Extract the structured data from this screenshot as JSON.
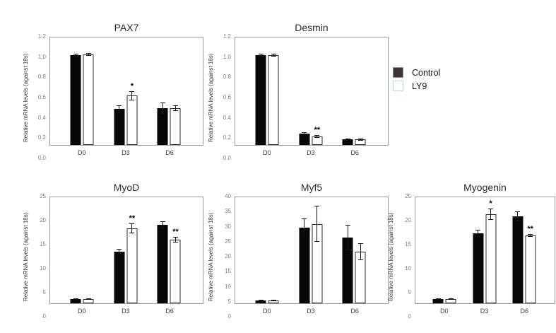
{
  "legend": {
    "items": [
      {
        "label": "Control",
        "swatch": "#3e3634",
        "border": "#8f8f8f"
      },
      {
        "label": "LY9",
        "swatch": "#ffffff",
        "border": "#c2d1e0"
      }
    ]
  },
  "chart_data": [
    {
      "type": "bar",
      "title": "PAX7",
      "ylabel": "Relative mRNA levels (against 18s)",
      "xlabel": "",
      "ylim": [
        0,
        1.2
      ],
      "ytick_step": 0.2,
      "ytick_decimals": 1,
      "grid": false,
      "legend_position": "outside-right",
      "categories": [
        "D0",
        "D3",
        "D6"
      ],
      "series": [
        {
          "name": "Control",
          "values": [
            1.0,
            0.4,
            0.41
          ],
          "errors": [
            0.02,
            0.04,
            0.06
          ]
        },
        {
          "name": "LY9",
          "values": [
            1.01,
            0.55,
            0.41
          ],
          "errors": [
            0.015,
            0.05,
            0.03
          ]
        }
      ],
      "significance": [
        {
          "category": "D3",
          "series": "LY9",
          "marker": "*"
        }
      ]
    },
    {
      "type": "bar",
      "title": "Desmin",
      "ylabel": "Relative mRNA levels (against 18s)",
      "xlabel": "",
      "ylim": [
        0,
        1.2
      ],
      "ytick_step": 0.2,
      "ytick_decimals": 1,
      "grid": false,
      "categories": [
        "D0",
        "D3",
        "D6"
      ],
      "series": [
        {
          "name": "Control",
          "values": [
            1.0,
            0.13,
            0.06
          ],
          "errors": [
            0.015,
            0.015,
            0.008
          ]
        },
        {
          "name": "LY9",
          "values": [
            1.0,
            0.095,
            0.06
          ],
          "errors": [
            0.015,
            0.012,
            0.012
          ]
        }
      ],
      "significance": [
        {
          "category": "D3",
          "series": "LY9",
          "marker": "**"
        }
      ]
    },
    {
      "type": "bar",
      "title": "MyoD",
      "ylabel": "Relative mRNA levels (against 18s)",
      "xlabel": "",
      "ylim": [
        0,
        25
      ],
      "ytick_step": 5,
      "ytick_decimals": 0,
      "grid": false,
      "categories": [
        "D0",
        "D3",
        "D6"
      ],
      "series": [
        {
          "name": "Control",
          "values": [
            1.0,
            12.2,
            18.5
          ],
          "errors": [
            0.15,
            0.6,
            0.8
          ]
        },
        {
          "name": "LY9",
          "values": [
            1.0,
            17.7,
            15.0
          ],
          "errors": [
            0.15,
            1.2,
            0.7
          ]
        }
      ],
      "significance": [
        {
          "category": "D3",
          "series": "LY9",
          "marker": "**"
        },
        {
          "category": "D6",
          "series": "LY9",
          "marker": "**"
        }
      ]
    },
    {
      "type": "bar",
      "title": "Myf5",
      "ylabel": "Relative mRNA levels (against 18s)",
      "xlabel": "",
      "ylim": [
        0,
        40
      ],
      "ytick_step": 5,
      "ytick_decimals": 0,
      "grid": false,
      "categories": [
        "D0",
        "D3",
        "D6"
      ],
      "series": [
        {
          "name": "Control",
          "values": [
            1.0,
            28.5,
            24.8
          ],
          "errors": [
            0.2,
            3.5,
            4.7
          ]
        },
        {
          "name": "LY9",
          "values": [
            1.0,
            30.0,
            19.5
          ],
          "errors": [
            0.25,
            6.8,
            3.3
          ]
        }
      ],
      "significance": []
    },
    {
      "type": "bar",
      "title": "Myogenin",
      "ylabel": "Relative mRNA levels (against 18s)",
      "xlabel": "",
      "ylim": [
        0,
        25
      ],
      "ytick_step": 5,
      "ytick_decimals": 0,
      "grid": false,
      "categories": [
        "D0",
        "D3",
        "D6"
      ],
      "series": [
        {
          "name": "Control",
          "values": [
            1.0,
            16.5,
            20.5
          ],
          "errors": [
            0.12,
            0.9,
            1.1
          ]
        },
        {
          "name": "LY9",
          "values": [
            1.0,
            21.0,
            16.0
          ],
          "errors": [
            0.12,
            1.4,
            0.4
          ]
        }
      ],
      "significance": [
        {
          "category": "D3",
          "series": "LY9",
          "marker": "*"
        },
        {
          "category": "D6",
          "series": "LY9",
          "marker": "**"
        }
      ]
    }
  ]
}
